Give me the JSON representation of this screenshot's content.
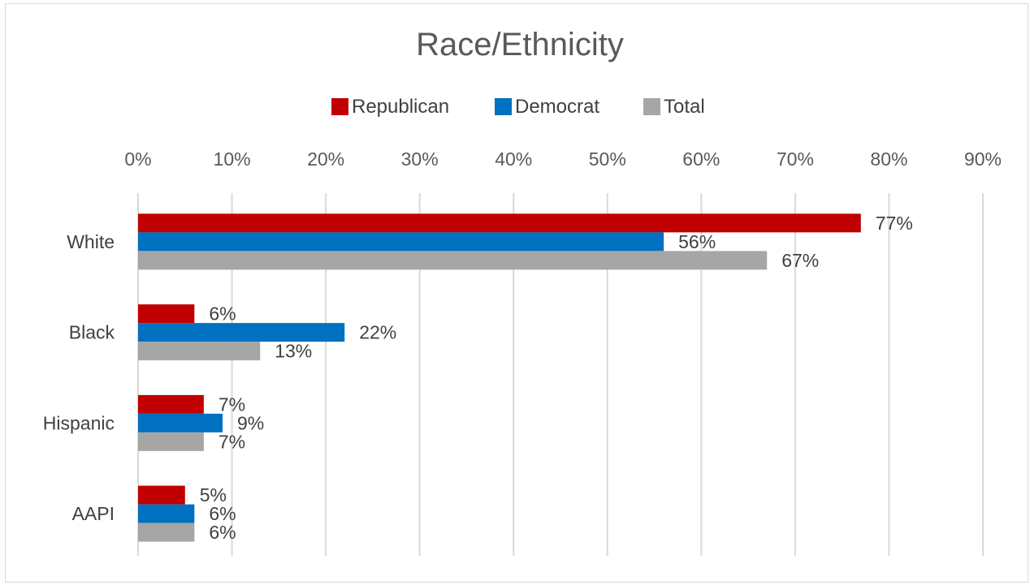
{
  "chart_data": {
    "type": "bar",
    "orientation": "horizontal",
    "title": "Race/Ethnicity",
    "categories": [
      "White",
      "Black",
      "Hispanic",
      "AAPI"
    ],
    "series": [
      {
        "name": "Republican",
        "color": "#c00000",
        "values": [
          77,
          6,
          7,
          5
        ],
        "labels": [
          "77%",
          "6%",
          "7%",
          "5%"
        ]
      },
      {
        "name": "Democrat",
        "color": "#0070c0",
        "values": [
          56,
          22,
          9,
          6
        ],
        "labels": [
          "56%",
          "22%",
          "9%",
          "6%"
        ]
      },
      {
        "name": "Total",
        "color": "#a6a6a6",
        "values": [
          67,
          13,
          7,
          6
        ],
        "labels": [
          "67%",
          "13%",
          "7%",
          "6%"
        ]
      }
    ],
    "x_ticks": [
      "0%",
      "10%",
      "20%",
      "30%",
      "40%",
      "50%",
      "60%",
      "70%",
      "80%",
      "90%"
    ],
    "xlim": [
      0,
      90
    ],
    "x_axis_position": "top",
    "grid": true,
    "legend_position": "top"
  }
}
